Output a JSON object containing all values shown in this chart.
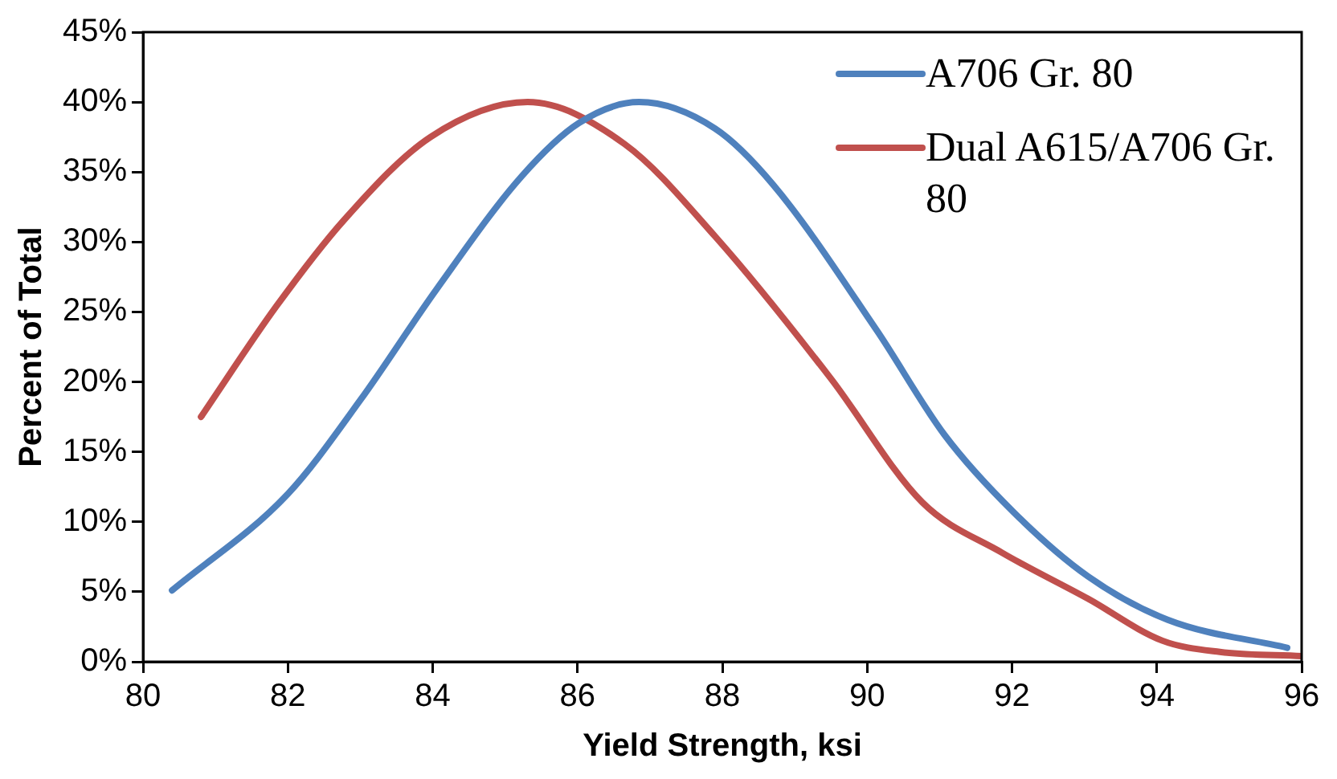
{
  "chart_data": {
    "type": "line",
    "xlabel": "Yield Strength, ksi",
    "ylabel": "Percent of Total",
    "xlim": [
      80,
      96
    ],
    "xticks": [
      80,
      82,
      84,
      86,
      88,
      90,
      92,
      94,
      96
    ],
    "ylim": [
      0,
      45
    ],
    "yticks": [
      {
        "value": 0,
        "label": "0%"
      },
      {
        "value": 5,
        "label": "5%"
      },
      {
        "value": 10,
        "label": "10%"
      },
      {
        "value": 15,
        "label": "15%"
      },
      {
        "value": 20,
        "label": "20%"
      },
      {
        "value": 25,
        "label": "25%"
      },
      {
        "value": 30,
        "label": "30%"
      },
      {
        "value": 35,
        "label": "35%"
      },
      {
        "value": 40,
        "label": "40%"
      },
      {
        "value": 45,
        "label": "45%"
      }
    ],
    "grid": false,
    "legend": "top right",
    "marker": "none",
    "line_style": "solid",
    "series": [
      {
        "name": "A706 Gr. 80",
        "color": "#4f81bd",
        "x": [
          80.4,
          82,
          83,
          84.05,
          85.23,
          86.02,
          86.85,
          87.9,
          88.7,
          90.13,
          91.07,
          92.02,
          93.05,
          94.15,
          95.8
        ],
        "values": [
          5.1,
          12,
          18.7,
          26.6,
          34.7,
          38.5,
          40,
          38.1,
          34.1,
          23.7,
          16.2,
          10.7,
          6.1,
          3,
          1
        ]
      },
      {
        "name": "Dual A615/A706 Gr. 80",
        "color": "#c0504d",
        "x": [
          80.8,
          81.84,
          82.78,
          83.97,
          85.31,
          86.65,
          87.9,
          89.49,
          90.76,
          91.86,
          93.05,
          94.08,
          94.87,
          96
        ],
        "values": [
          17.5,
          25.4,
          31.6,
          37.5,
          40,
          37,
          30.4,
          20.3,
          11.4,
          7.8,
          4.5,
          1.5,
          0.7,
          0.4
        ]
      }
    ]
  }
}
